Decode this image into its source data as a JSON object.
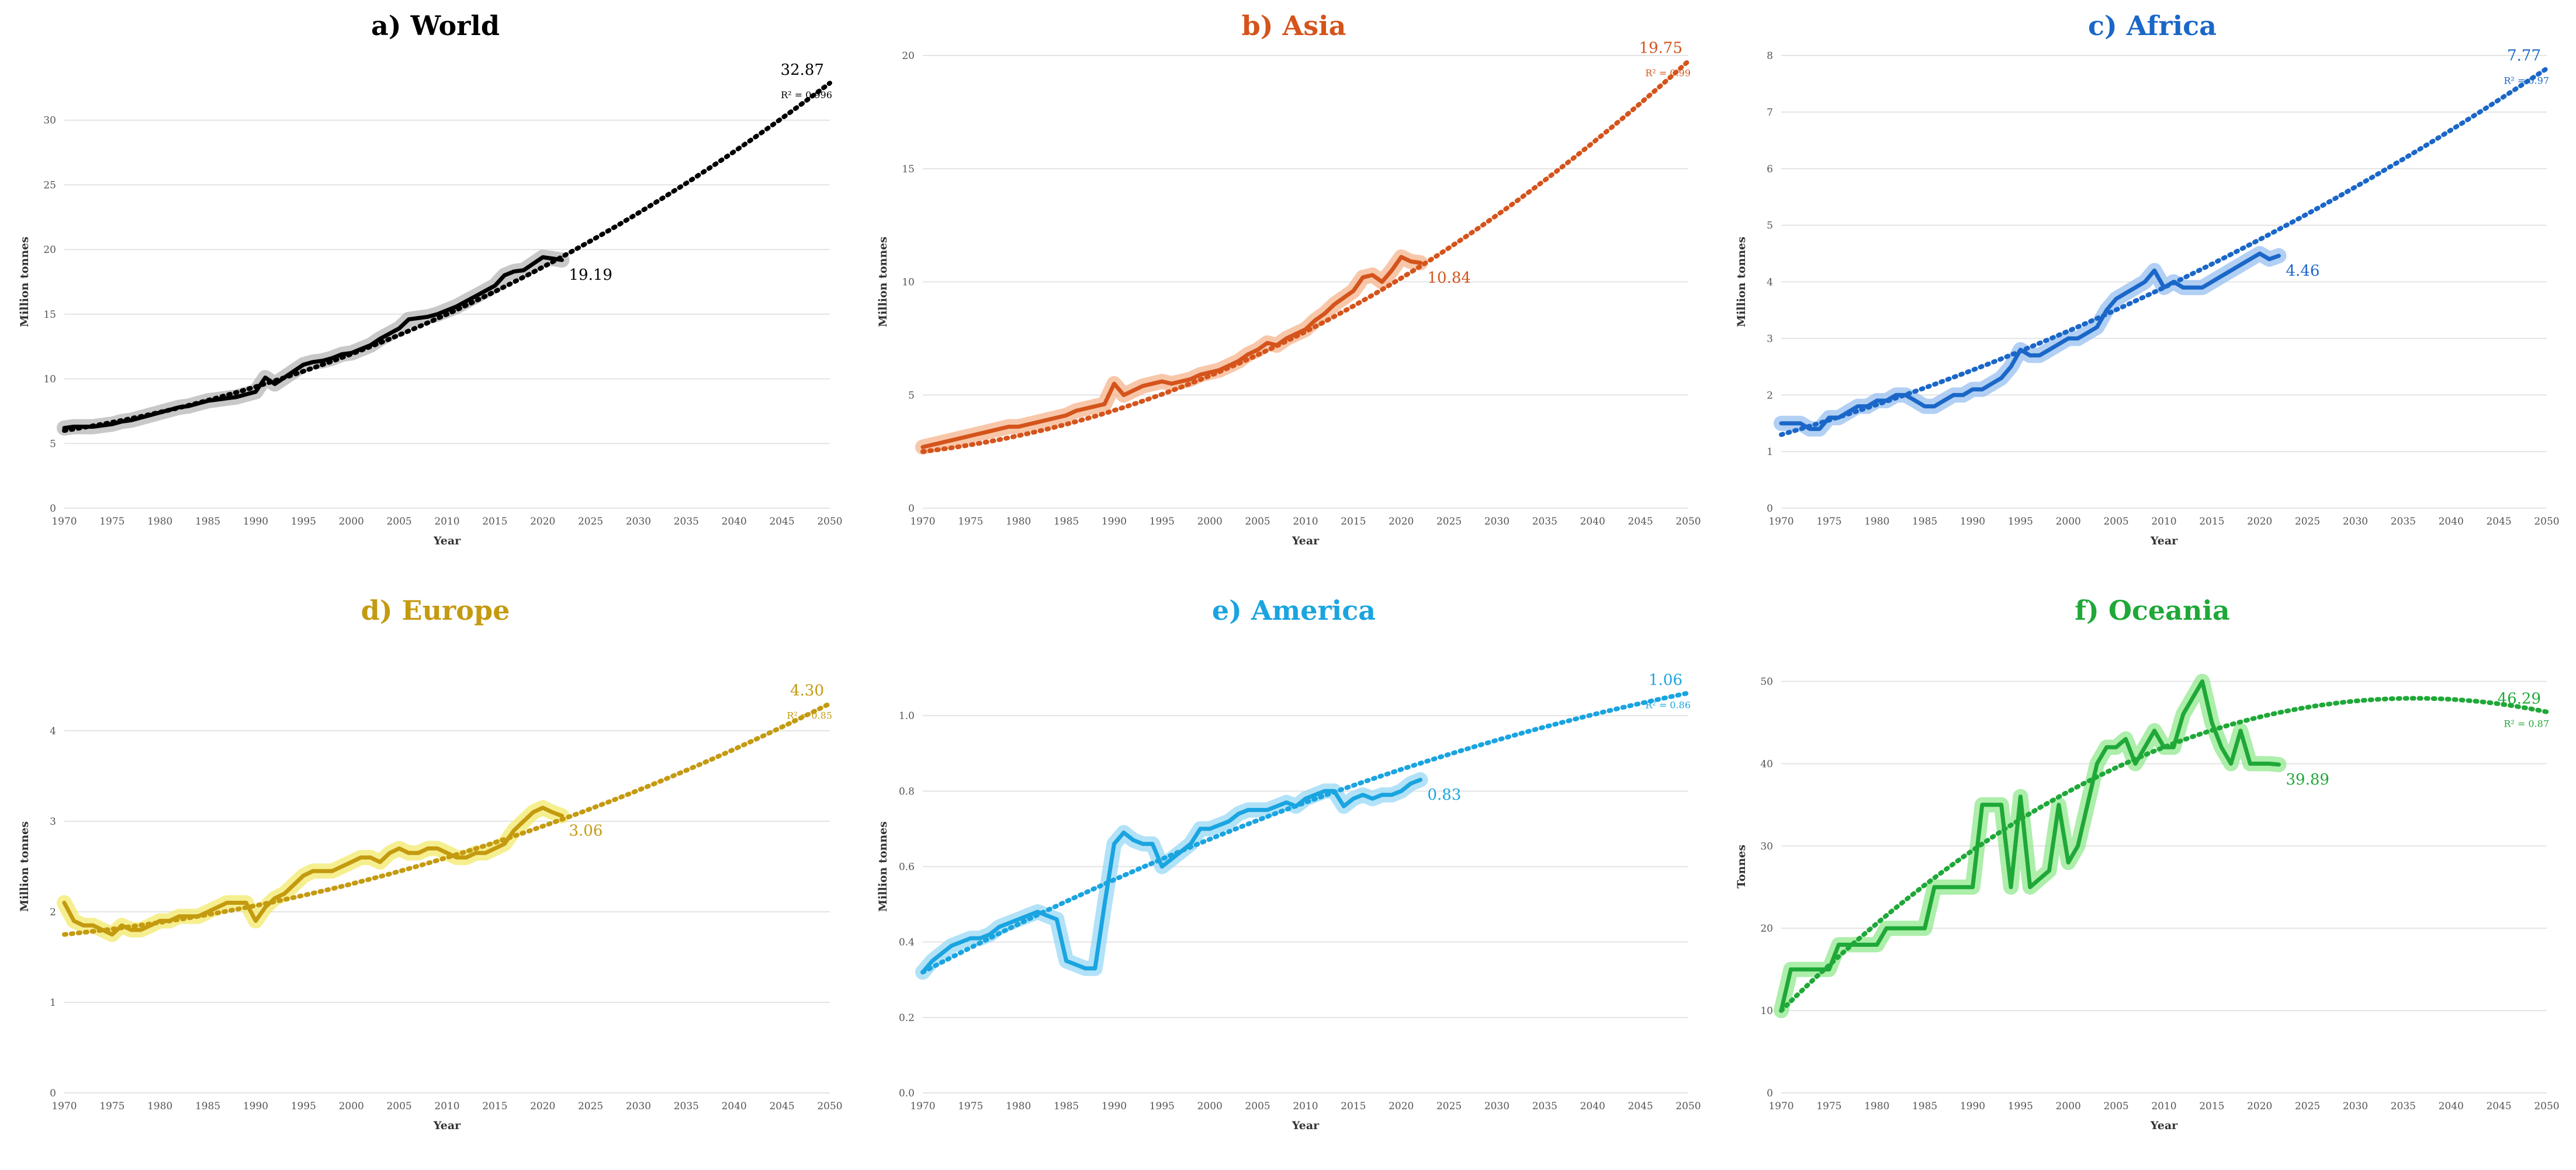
{
  "chart_data": [
    {
      "id": "world",
      "type": "line",
      "title": "a) World",
      "xlabel": "Year",
      "ylabel": "Million tonnes",
      "color": "#000000",
      "glow": "#b5b5b5",
      "xlim": [
        1970,
        2050
      ],
      "ylim": [
        0,
        35
      ],
      "yticks": [
        0,
        5,
        10,
        15,
        20,
        25,
        30
      ],
      "ytick_labels": [
        "0",
        "5",
        "10",
        "15",
        "20",
        "25",
        "30"
      ],
      "xticks": [
        1970,
        1975,
        1980,
        1985,
        1990,
        1995,
        2000,
        2005,
        2010,
        2015,
        2020,
        2025,
        2030,
        2035,
        2040,
        2045,
        2050
      ],
      "series": [
        {
          "name": "World",
          "x": [
            1970,
            1971,
            1972,
            1973,
            1974,
            1975,
            1976,
            1977,
            1978,
            1979,
            1980,
            1981,
            1982,
            1983,
            1984,
            1985,
            1986,
            1987,
            1988,
            1989,
            1990,
            1991,
            1992,
            1993,
            1994,
            1995,
            1996,
            1997,
            1998,
            1999,
            2000,
            2001,
            2002,
            2003,
            2004,
            2005,
            2006,
            2007,
            2008,
            2009,
            2010,
            2011,
            2012,
            2013,
            2014,
            2015,
            2016,
            2017,
            2018,
            2019,
            2020,
            2021,
            2022
          ],
          "values": [
            6.2,
            6.3,
            6.3,
            6.3,
            6.4,
            6.5,
            6.7,
            6.8,
            7.0,
            7.2,
            7.4,
            7.6,
            7.8,
            7.9,
            8.1,
            8.3,
            8.4,
            8.5,
            8.6,
            8.8,
            9.0,
            10.1,
            9.6,
            10.1,
            10.6,
            11.1,
            11.3,
            11.4,
            11.6,
            11.9,
            12.0,
            12.3,
            12.6,
            13.1,
            13.5,
            13.9,
            14.6,
            14.7,
            14.8,
            15.0,
            15.3,
            15.6,
            16.0,
            16.4,
            16.8,
            17.2,
            18.0,
            18.3,
            18.4,
            18.9,
            19.4,
            19.3,
            19.19
          ]
        }
      ],
      "trend": {
        "start": 6.0,
        "mid_x": 2010,
        "mid": 15.0,
        "end": 32.87,
        "r2_label": "R² = 0.996"
      },
      "annotations": {
        "last_value_label": "19.19",
        "projection_label": "32.87"
      }
    },
    {
      "id": "asia",
      "type": "line",
      "title": "b) Asia",
      "xlabel": "Year",
      "ylabel": "Million tonnes",
      "color": "#d4541c",
      "glow": "#f6b48e",
      "xlim": [
        1970,
        2050
      ],
      "ylim": [
        0,
        20
      ],
      "yticks": [
        0,
        5,
        10,
        15,
        20
      ],
      "ytick_labels": [
        "0",
        "5",
        "10",
        "15",
        "20"
      ],
      "xticks": [
        1970,
        1975,
        1980,
        1985,
        1990,
        1995,
        2000,
        2005,
        2010,
        2015,
        2020,
        2025,
        2030,
        2035,
        2040,
        2045,
        2050
      ],
      "series": [
        {
          "name": "Asia",
          "x": [
            1970,
            1971,
            1972,
            1973,
            1974,
            1975,
            1976,
            1977,
            1978,
            1979,
            1980,
            1981,
            1982,
            1983,
            1984,
            1985,
            1986,
            1987,
            1988,
            1989,
            1990,
            1991,
            1992,
            1993,
            1994,
            1995,
            1996,
            1997,
            1998,
            1999,
            2000,
            2001,
            2002,
            2003,
            2004,
            2005,
            2006,
            2007,
            2008,
            2009,
            2010,
            2011,
            2012,
            2013,
            2014,
            2015,
            2016,
            2017,
            2018,
            2019,
            2020,
            2021,
            2022
          ],
          "values": [
            2.7,
            2.8,
            2.9,
            3.0,
            3.1,
            3.2,
            3.3,
            3.4,
            3.5,
            3.6,
            3.6,
            3.7,
            3.8,
            3.9,
            4.0,
            4.1,
            4.3,
            4.4,
            4.5,
            4.6,
            5.5,
            5.0,
            5.2,
            5.4,
            5.5,
            5.6,
            5.5,
            5.6,
            5.7,
            5.9,
            6.0,
            6.1,
            6.3,
            6.5,
            6.8,
            7.0,
            7.3,
            7.2,
            7.5,
            7.7,
            7.9,
            8.3,
            8.6,
            9.0,
            9.3,
            9.6,
            10.2,
            10.3,
            10.0,
            10.5,
            11.1,
            10.9,
            10.84
          ]
        }
      ],
      "trend": {
        "start": 2.5,
        "mid_x": 2010,
        "mid": 7.8,
        "end": 19.75,
        "r2_label": "R² = 0.99"
      },
      "annotations": {
        "last_value_label": "10.84",
        "projection_label": "19.75"
      }
    },
    {
      "id": "africa",
      "type": "line",
      "title": "c) Africa",
      "xlabel": "Year",
      "ylabel": "Million tonnes",
      "color": "#1a67c8",
      "glow": "#98bff0",
      "xlim": [
        1970,
        2050
      ],
      "ylim": [
        0,
        8
      ],
      "yticks": [
        0,
        1,
        2,
        3,
        4,
        5,
        6,
        7,
        8
      ],
      "ytick_labels": [
        "0",
        "1",
        "2",
        "3",
        "4",
        "5",
        "6",
        "7",
        "8"
      ],
      "xticks": [
        1970,
        1975,
        1980,
        1985,
        1990,
        1995,
        2000,
        2005,
        2010,
        2015,
        2020,
        2025,
        2030,
        2035,
        2040,
        2045,
        2050
      ],
      "series": [
        {
          "name": "Africa",
          "x": [
            1970,
            1971,
            1972,
            1973,
            1974,
            1975,
            1976,
            1977,
            1978,
            1979,
            1980,
            1981,
            1982,
            1983,
            1984,
            1985,
            1986,
            1987,
            1988,
            1989,
            1990,
            1991,
            1992,
            1993,
            1994,
            1995,
            1996,
            1997,
            1998,
            1999,
            2000,
            2001,
            2002,
            2003,
            2004,
            2005,
            2006,
            2007,
            2008,
            2009,
            2010,
            2011,
            2012,
            2013,
            2014,
            2015,
            2016,
            2017,
            2018,
            2019,
            2020,
            2021,
            2022
          ],
          "values": [
            1.5,
            1.5,
            1.5,
            1.4,
            1.4,
            1.6,
            1.6,
            1.7,
            1.8,
            1.8,
            1.9,
            1.9,
            2.0,
            2.0,
            1.9,
            1.8,
            1.8,
            1.9,
            2.0,
            2.0,
            2.1,
            2.1,
            2.2,
            2.3,
            2.5,
            2.8,
            2.7,
            2.7,
            2.8,
            2.9,
            3.0,
            3.0,
            3.1,
            3.2,
            3.5,
            3.7,
            3.8,
            3.9,
            4.0,
            4.2,
            3.9,
            4.0,
            3.9,
            3.9,
            3.9,
            4.0,
            4.1,
            4.2,
            4.3,
            4.4,
            4.5,
            4.4,
            4.46
          ]
        }
      ],
      "trend": {
        "start": 1.3,
        "mid_x": 2010,
        "mid": 3.9,
        "end": 7.77,
        "r2_label": "R² = 0.97"
      },
      "annotations": {
        "last_value_label": "4.46",
        "projection_label": "7.77"
      }
    },
    {
      "id": "europe",
      "type": "line",
      "title": "d) Europe",
      "xlabel": "Year",
      "ylabel": "Million tonnes",
      "color": "#c49a10",
      "glow": "#f3ea6b",
      "xlim": [
        1970,
        2050
      ],
      "ylim": [
        0,
        5
      ],
      "yticks": [
        0,
        1,
        2,
        3,
        4
      ],
      "ytick_labels": [
        "0",
        "1",
        "2",
        "3",
        "4"
      ],
      "xticks": [
        1970,
        1975,
        1980,
        1985,
        1990,
        1995,
        2000,
        2005,
        2010,
        2015,
        2020,
        2025,
        2030,
        2035,
        2040,
        2045,
        2050
      ],
      "series": [
        {
          "name": "Europe",
          "x": [
            1970,
            1971,
            1972,
            1973,
            1974,
            1975,
            1976,
            1977,
            1978,
            1979,
            1980,
            1981,
            1982,
            1983,
            1984,
            1985,
            1986,
            1987,
            1988,
            1989,
            1990,
            1991,
            1992,
            1993,
            1994,
            1995,
            1996,
            1997,
            1998,
            1999,
            2000,
            2001,
            2002,
            2003,
            2004,
            2005,
            2006,
            2007,
            2008,
            2009,
            2010,
            2011,
            2012,
            2013,
            2014,
            2015,
            2016,
            2017,
            2018,
            2019,
            2020,
            2021,
            2022
          ],
          "values": [
            2.1,
            1.9,
            1.85,
            1.85,
            1.8,
            1.75,
            1.85,
            1.8,
            1.8,
            1.85,
            1.9,
            1.9,
            1.95,
            1.95,
            1.95,
            2.0,
            2.05,
            2.1,
            2.1,
            2.1,
            1.9,
            2.05,
            2.15,
            2.2,
            2.3,
            2.4,
            2.45,
            2.45,
            2.45,
            2.5,
            2.55,
            2.6,
            2.6,
            2.55,
            2.65,
            2.7,
            2.65,
            2.65,
            2.7,
            2.7,
            2.65,
            2.6,
            2.6,
            2.65,
            2.65,
            2.7,
            2.75,
            2.9,
            3.0,
            3.1,
            3.15,
            3.1,
            3.06
          ]
        }
      ],
      "trend": {
        "start": 1.75,
        "mid_x": 2010,
        "mid": 2.6,
        "end": 4.3,
        "r2_label": "R² = 0.85"
      },
      "annotations": {
        "last_value_label": "3.06",
        "projection_label": "4.30"
      }
    },
    {
      "id": "america",
      "type": "line",
      "title": "e) America",
      "xlabel": "Year",
      "ylabel": "Million tonnes",
      "color": "#1aa4e0",
      "glow": "#98d8f4",
      "xlim": [
        1970,
        2050
      ],
      "ylim": [
        0,
        1.2
      ],
      "yticks": [
        0,
        0.2,
        0.4,
        0.6,
        0.8,
        1.0
      ],
      "ytick_labels": [
        "0.0",
        "0.2",
        "0.4",
        "0.6",
        "0.8",
        "1.0"
      ],
      "xticks": [
        1970,
        1975,
        1980,
        1985,
        1990,
        1995,
        2000,
        2005,
        2010,
        2015,
        2020,
        2025,
        2030,
        2035,
        2040,
        2045,
        2050
      ],
      "series": [
        {
          "name": "America",
          "x": [
            1970,
            1971,
            1972,
            1973,
            1974,
            1975,
            1976,
            1977,
            1978,
            1979,
            1980,
            1981,
            1982,
            1983,
            1984,
            1985,
            1986,
            1987,
            1988,
            1989,
            1990,
            1991,
            1992,
            1993,
            1994,
            1995,
            1996,
            1997,
            1998,
            1999,
            2000,
            2001,
            2002,
            2003,
            2004,
            2005,
            2006,
            2007,
            2008,
            2009,
            2010,
            2011,
            2012,
            2013,
            2014,
            2015,
            2016,
            2017,
            2018,
            2019,
            2020,
            2021,
            2022
          ],
          "values": [
            0.32,
            0.35,
            0.37,
            0.39,
            0.4,
            0.41,
            0.41,
            0.42,
            0.44,
            0.45,
            0.46,
            0.47,
            0.48,
            0.47,
            0.46,
            0.35,
            0.34,
            0.33,
            0.33,
            0.5,
            0.66,
            0.69,
            0.67,
            0.66,
            0.66,
            0.6,
            0.62,
            0.64,
            0.66,
            0.7,
            0.7,
            0.71,
            0.72,
            0.74,
            0.75,
            0.75,
            0.75,
            0.76,
            0.77,
            0.76,
            0.78,
            0.79,
            0.8,
            0.8,
            0.76,
            0.78,
            0.79,
            0.78,
            0.79,
            0.79,
            0.8,
            0.82,
            0.83
          ]
        }
      ],
      "trend": {
        "start": 0.32,
        "mid_x": 2010,
        "mid": 0.77,
        "end": 1.06,
        "r2_label": "R² = 0.86"
      },
      "annotations": {
        "last_value_label": "0.83",
        "projection_label": "1.06"
      }
    },
    {
      "id": "oceania",
      "type": "line",
      "title": "f) Oceania",
      "xlabel": "Year",
      "ylabel": "Tonnes",
      "color": "#1fa838",
      "glow": "#90e88e",
      "xlim": [
        1970,
        2050
      ],
      "ylim": [
        0,
        55
      ],
      "yticks": [
        0,
        10,
        20,
        30,
        40,
        50
      ],
      "ytick_labels": [
        "0",
        "10",
        "20",
        "30",
        "40",
        "50"
      ],
      "xticks": [
        1970,
        1975,
        1980,
        1985,
        1990,
        1995,
        2000,
        2005,
        2010,
        2015,
        2020,
        2025,
        2030,
        2035,
        2040,
        2045,
        2050
      ],
      "series": [
        {
          "name": "Oceania",
          "x": [
            1970,
            1971,
            1972,
            1973,
            1974,
            1975,
            1976,
            1977,
            1978,
            1979,
            1980,
            1981,
            1982,
            1983,
            1984,
            1985,
            1986,
            1987,
            1988,
            1989,
            1990,
            1991,
            1992,
            1993,
            1994,
            1995,
            1996,
            1997,
            1998,
            1999,
            2000,
            2001,
            2002,
            2003,
            2004,
            2005,
            2006,
            2007,
            2008,
            2009,
            2010,
            2011,
            2012,
            2013,
            2014,
            2015,
            2016,
            2017,
            2018,
            2019,
            2020,
            2021,
            2022
          ],
          "values": [
            10,
            15,
            15,
            15,
            15,
            15,
            18,
            18,
            18,
            18,
            18,
            20,
            20,
            20,
            20,
            20,
            25,
            25,
            25,
            25,
            25,
            35,
            35,
            35,
            25,
            36,
            25,
            26,
            27,
            35,
            28,
            30,
            35,
            40,
            42,
            42,
            43,
            40,
            42,
            44,
            42,
            42,
            46,
            48,
            50,
            45,
            42,
            40,
            44,
            40,
            40,
            40,
            39.89
          ]
        }
      ],
      "trend": {
        "type": "quadratic",
        "start": 10,
        "mid_x": 2010,
        "mid": 42,
        "end": 46.29,
        "r2_label": "R² = 0.87"
      },
      "annotations": {
        "last_value_label": "39.89",
        "projection_label": "46.29"
      }
    }
  ]
}
